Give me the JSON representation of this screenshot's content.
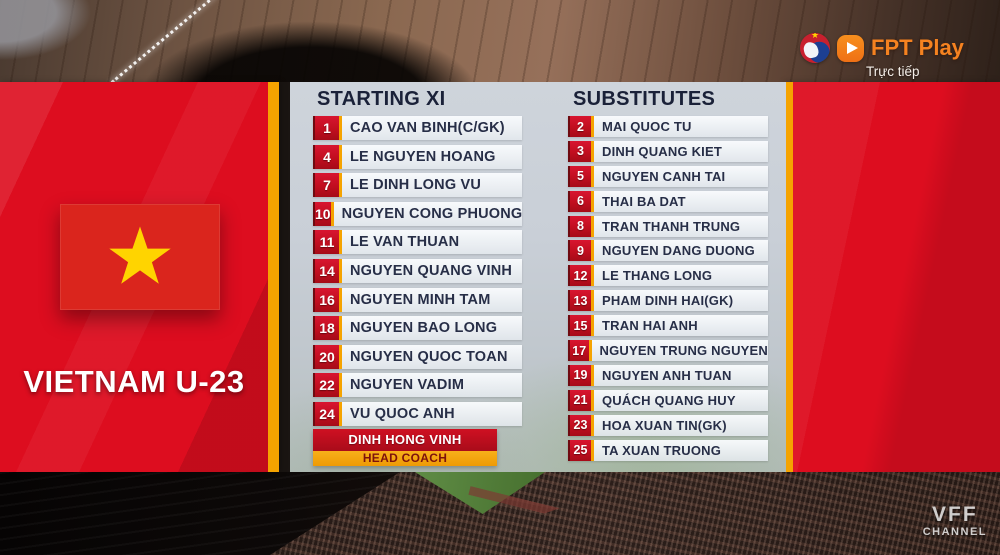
{
  "broadcaster": {
    "name": "FPT Play",
    "live_label": "Trực tiếp",
    "vff_logo": "vff-badge-icon",
    "play_icon": "play-button-icon"
  },
  "team_panel": {
    "team_name": "VIETNAM U-23",
    "flag": "vietnam-flag"
  },
  "lineup": {
    "starting_header": "STARTING XI",
    "substitutes_header": "SUBSTITUTES",
    "starting_xi": [
      {
        "number": "1",
        "name": "CAO VAN BINH(C/GK)"
      },
      {
        "number": "4",
        "name": "LE NGUYEN HOANG"
      },
      {
        "number": "7",
        "name": "LE DINH LONG VU"
      },
      {
        "number": "10",
        "name": "NGUYEN CONG PHUONG"
      },
      {
        "number": "11",
        "name": "LE VAN THUAN"
      },
      {
        "number": "14",
        "name": "NGUYEN QUANG VINH"
      },
      {
        "number": "16",
        "name": "NGUYEN MINH TAM"
      },
      {
        "number": "18",
        "name": "NGUYEN BAO LONG"
      },
      {
        "number": "20",
        "name": "NGUYEN QUOC TOAN"
      },
      {
        "number": "22",
        "name": "NGUYEN VADIM"
      },
      {
        "number": "24",
        "name": "VU QUOC ANH"
      }
    ],
    "substitutes": [
      {
        "number": "2",
        "name": "MAI QUOC TU"
      },
      {
        "number": "3",
        "name": "DINH QUANG KIET"
      },
      {
        "number": "5",
        "name": "NGUYEN CANH TAI"
      },
      {
        "number": "6",
        "name": "THAI BA DAT"
      },
      {
        "number": "8",
        "name": "TRAN THANH TRUNG"
      },
      {
        "number": "9",
        "name": "NGUYEN DANG DUONG"
      },
      {
        "number": "12",
        "name": "LE THANG LONG"
      },
      {
        "number": "13",
        "name": "PHAM DINH HAI(GK)"
      },
      {
        "number": "15",
        "name": "TRAN HAI ANH"
      },
      {
        "number": "17",
        "name": "NGUYEN TRUNG NGUYEN"
      },
      {
        "number": "19",
        "name": "NGUYEN ANH TUAN"
      },
      {
        "number": "21",
        "name": "QUÁCH QUANG HUY"
      },
      {
        "number": "23",
        "name": "HOA XUAN TIN(GK)"
      },
      {
        "number": "25",
        "name": "TA XUAN TRUONG"
      }
    ],
    "coach": {
      "name": "DINH HONG VINH",
      "role": "HEAD COACH"
    }
  },
  "watermark": {
    "line1": "VFF",
    "line2": "CHANNEL"
  },
  "colors": {
    "panel_red": "#dd0d1f",
    "stripe_yellow": "#f5a300",
    "badge_red": "#c8101e",
    "coach_red": "#cf1022",
    "coach_yellow": "#f7b01a",
    "header_navy": "#1a2138",
    "flag_red": "#da251d",
    "star_yellow": "#ffd400",
    "fpt_orange": "#f58220"
  }
}
